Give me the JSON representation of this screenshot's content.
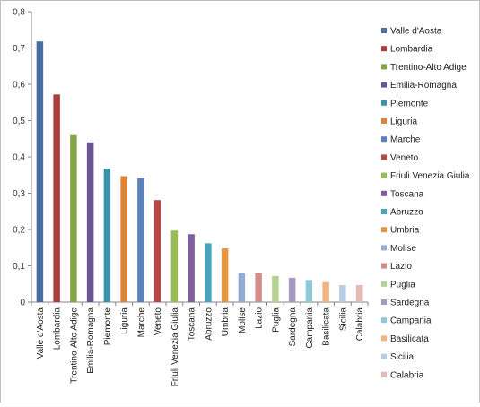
{
  "chart_data": {
    "type": "bar",
    "title": "",
    "xlabel": "",
    "ylabel": "",
    "ylim": [
      0,
      0.8
    ],
    "yticks": [
      "0",
      "0,1",
      "0,2",
      "0,3",
      "0,4",
      "0,5",
      "0,6",
      "0,7",
      "0,8"
    ],
    "grid": false,
    "legend_position": "right",
    "categories": [
      "Valle d'Aosta",
      "Lombardia",
      "Trentino-Alto Adige",
      "Emilia-Romagna",
      "Piemonte",
      "Liguria",
      "Marche",
      "Veneto",
      "Friuli Venezia Giulia",
      "Toscana",
      "Abruzzo",
      "Umbria",
      "Molise",
      "Lazio",
      "Puglia",
      "Sardegna",
      "Campania",
      "Basilicata",
      "Sicilia",
      "Calabria"
    ],
    "values": [
      0.718,
      0.572,
      0.46,
      0.44,
      0.368,
      0.347,
      0.341,
      0.281,
      0.197,
      0.187,
      0.162,
      0.148,
      0.08,
      0.08,
      0.072,
      0.067,
      0.061,
      0.055,
      0.047,
      0.047
    ],
    "colors": [
      "#4a6fa5",
      "#ac3b3b",
      "#84a547",
      "#6e5595",
      "#3a93ab",
      "#dd8436",
      "#5b81bd",
      "#b64845",
      "#9bbb59",
      "#7e5e9e",
      "#4aa4bd",
      "#e8953f",
      "#95acd5",
      "#d48c8b",
      "#b6d190",
      "#a899c0",
      "#8ec8da",
      "#f4b384",
      "#b8cce4",
      "#e6b9b8"
    ]
  }
}
